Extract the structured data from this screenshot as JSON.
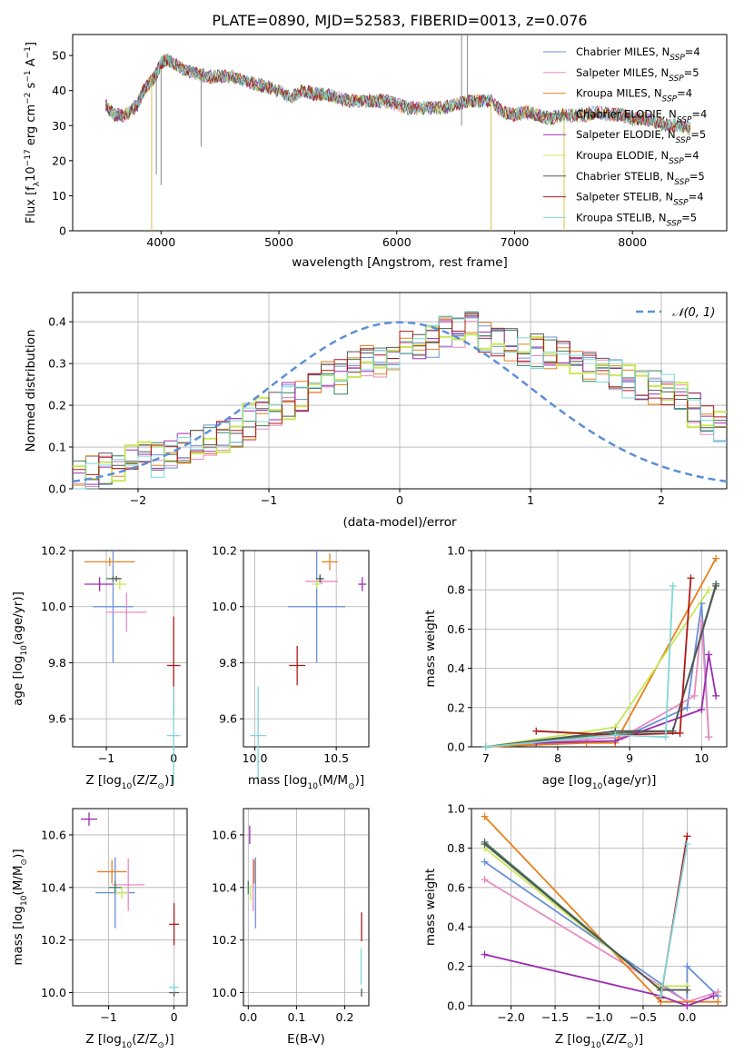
{
  "title": "PLATE=0890, MJD=52583, FIBERID=0013, z=0.076",
  "model_colors": [
    "#6a8fd8",
    "#e88bbf",
    "#e8801a",
    "#3f7f5a",
    "#9b2bb0",
    "#c8e85a",
    "#555555",
    "#b01818",
    "#7fd6d8"
  ],
  "chart_data": [
    {
      "id": "spectrum",
      "type": "line",
      "title": "PLATE=0890, MJD=52583, FIBERID=0013, z=0.076",
      "xlabel": "wavelength [Angstrom, rest frame]",
      "ylabel_main": "Flux [f",
      "ylabel_sub": "λ",
      "ylabel_mid": "10",
      "ylabel_sup1": "−17",
      "ylabel_end": " erg cm",
      "ylabel_sup2": "−2",
      "ylabel_end2": " s",
      "ylabel_sup3": "−1",
      "ylabel_end3": " A",
      "ylabel_sup4": "−1",
      "ylabel_close": "]",
      "xlim": [
        3250,
        8800
      ],
      "ylim": [
        0,
        56
      ],
      "xticks": [
        4000,
        5000,
        6000,
        7000,
        8000
      ],
      "yticks": [
        0,
        10,
        20,
        30,
        40,
        50
      ],
      "grid": false,
      "legend": "top-right",
      "x": [
        3530,
        3600,
        3700,
        3800,
        3850,
        3900,
        3950,
        4000,
        4050,
        4100,
        4200,
        4300,
        4400,
        4500,
        4600,
        4700,
        4800,
        4900,
        5000,
        5100,
        5200,
        5300,
        5400,
        5500,
        5600,
        5700,
        5800,
        5900,
        6000,
        6100,
        6200,
        6300,
        6400,
        6500,
        6600,
        6700,
        6800,
        6900,
        7000,
        7100,
        7200,
        7300,
        7400,
        7500,
        7600,
        7700,
        7800,
        7900,
        8000,
        8100,
        8200,
        8300,
        8400,
        8500
      ],
      "y": [
        36,
        33,
        33,
        36,
        40,
        42,
        44,
        48,
        49,
        48,
        46,
        45,
        44,
        44,
        44,
        43,
        42,
        41,
        40,
        38,
        40,
        39,
        39,
        38,
        37,
        37,
        37,
        37,
        36,
        35,
        35,
        35,
        35,
        36,
        37,
        37,
        37,
        34,
        33,
        34,
        33,
        32,
        33,
        33,
        33,
        34,
        33,
        33,
        32,
        32,
        31,
        30,
        30,
        29
      ],
      "series": [
        {
          "name": "Chabrier MILES, N",
          "sub": "SSP",
          "tail": "=4"
        },
        {
          "name": "Salpeter MILES, N",
          "sub": "SSP",
          "tail": "=5"
        },
        {
          "name": "Kroupa MILES, N",
          "sub": "SSP",
          "tail": "=4"
        },
        {
          "name": "Chabrier ELODIE, N",
          "sub": "SSP",
          "tail": "=4"
        },
        {
          "name": "Salpeter ELODIE, N",
          "sub": "SSP",
          "tail": "=5"
        },
        {
          "name": "Kroupa ELODIE, N",
          "sub": "SSP",
          "tail": "=4"
        },
        {
          "name": "Chabrier STELIB, N",
          "sub": "SSP",
          "tail": "=5"
        },
        {
          "name": "Salpeter STELIB, N",
          "sub": "SSP",
          "tail": "=4"
        },
        {
          "name": "Kroupa STELIB, N",
          "sub": "SSP",
          "tail": "=5"
        }
      ]
    },
    {
      "id": "residuals",
      "type": "bar",
      "xlabel": "(data-model)/error",
      "ylabel": "Normed distribution",
      "xlim": [
        -2.5,
        2.5
      ],
      "ylim": [
        0,
        0.47
      ],
      "xticks": [
        -2,
        -1,
        0,
        1,
        2
      ],
      "yticks": [
        0.0,
        0.1,
        0.2,
        0.3,
        0.4
      ],
      "grid": true,
      "legend": "top-right",
      "reference": {
        "name": "𝒩(0, 1)",
        "mean": 0,
        "sigma": 1
      },
      "bin_width": 0.1,
      "x_start": -2.5,
      "values": [
        0.03,
        0.04,
        0.05,
        0.06,
        0.06,
        0.07,
        0.07,
        0.08,
        0.09,
        0.1,
        0.11,
        0.13,
        0.14,
        0.16,
        0.18,
        0.19,
        0.21,
        0.22,
        0.24,
        0.26,
        0.27,
        0.29,
        0.3,
        0.31,
        0.33,
        0.34,
        0.35,
        0.36,
        0.37,
        0.38,
        0.38,
        0.37,
        0.36,
        0.35,
        0.34,
        0.33,
        0.32,
        0.31,
        0.3,
        0.29,
        0.28,
        0.27,
        0.26,
        0.25,
        0.24,
        0.23,
        0.21,
        0.19,
        0.17,
        0.15
      ]
    },
    {
      "id": "age-vs-Z",
      "type": "scatter",
      "xlabel": "Z [log",
      "xlabel_sub": "10",
      "xlabel_end": "(Z/Z",
      "xlabel_odot": "⊙",
      "xlabel_close": ")]",
      "ylabel": "age  [log",
      "ylabel_sub": "10",
      "ylabel_end": "(age/yr)]",
      "xlim": [
        -1.5,
        0.2
      ],
      "ylim": [
        9.5,
        10.2
      ],
      "xticks": [
        -1,
        0
      ],
      "yticks": [
        9.6,
        9.8,
        10.0,
        10.2
      ],
      "grid": true,
      "points": [
        {
          "x": -0.9,
          "y": 10.0,
          "xerr": 0.6,
          "yerr": 0.4
        },
        {
          "x": -0.7,
          "y": 9.98,
          "xerr": 0.6,
          "yerr": 0.14
        },
        {
          "x": -0.95,
          "y": 10.16,
          "xerr": 0.75,
          "yerr": 0.03
        },
        {
          "x": -0.9,
          "y": 10.1,
          "xerr": 0.2,
          "yerr": 0.02
        },
        {
          "x": -1.1,
          "y": 10.08,
          "xerr": 0.45,
          "yerr": 0.05
        },
        {
          "x": -0.8,
          "y": 10.08,
          "xerr": 0.2,
          "yerr": 0.04
        },
        {
          "x": -0.85,
          "y": 10.1,
          "xerr": 0.15,
          "yerr": 0.02
        },
        {
          "x": 0.0,
          "y": 9.79,
          "xerr": 0.2,
          "yerr": 0.35
        },
        {
          "x": 0.0,
          "y": 9.54,
          "xerr": 0.2,
          "yerr": 0.35
        }
      ]
    },
    {
      "id": "age-vs-mass",
      "type": "scatter",
      "xlabel": "mass [log",
      "xlabel_sub": "10",
      "xlabel_end": "(M/M",
      "xlabel_odot": "⊙",
      "xlabel_close": ")]",
      "xlim": [
        9.93,
        10.7
      ],
      "ylim": [
        9.5,
        10.2
      ],
      "xticks": [
        10.0,
        10.5
      ],
      "yticks": [
        9.6,
        9.8,
        10.0,
        10.2
      ],
      "grid": true,
      "points": [
        {
          "x": 10.38,
          "y": 10.0,
          "xerr": 0.35,
          "yerr": 0.4
        },
        {
          "x": 10.41,
          "y": 10.09,
          "xerr": 0.2,
          "yerr": 0.02
        },
        {
          "x": 10.46,
          "y": 10.16,
          "xerr": 0.1,
          "yerr": 0.06
        },
        {
          "x": 10.4,
          "y": 10.1,
          "xerr": 0.05,
          "yerr": 0.03
        },
        {
          "x": 10.66,
          "y": 10.08,
          "xerr": 0.05,
          "yerr": 0.05
        },
        {
          "x": 10.38,
          "y": 10.08,
          "xerr": 0.05,
          "yerr": 0.03
        },
        {
          "x": 10.4,
          "y": 10.1,
          "xerr": 0.02,
          "yerr": 0.02
        },
        {
          "x": 10.26,
          "y": 9.79,
          "xerr": 0.1,
          "yerr": 0.14
        },
        {
          "x": 10.02,
          "y": 9.54,
          "xerr": 0.1,
          "yerr": 0.35
        }
      ]
    },
    {
      "id": "weight-vs-age",
      "type": "line",
      "xlabel": "age  [log",
      "xlabel_sub": "10",
      "xlabel_end": "(age/yr)]",
      "ylabel": "mass weight",
      "xlim": [
        6.8,
        10.35
      ],
      "ylim": [
        0,
        1.0
      ],
      "xticks": [
        7,
        8,
        9,
        10
      ],
      "yticks": [
        0.0,
        0.2,
        0.4,
        0.6,
        0.8,
        1.0
      ],
      "grid": true,
      "series": [
        {
          "x": [
            7.0,
            8.8,
            9.8,
            10.0,
            10.1
          ],
          "y": [
            0.0,
            0.03,
            0.2,
            0.73,
            0.05
          ]
        },
        {
          "x": [
            7.0,
            8.9,
            9.9,
            10.0,
            10.1
          ],
          "y": [
            0.0,
            0.05,
            0.26,
            0.64,
            0.05
          ]
        },
        {
          "x": [
            7.0,
            8.4,
            8.8,
            10.2
          ],
          "y": [
            0.0,
            0.02,
            0.02,
            0.96
          ]
        },
        {
          "x": [
            7.0,
            8.8,
            9.6,
            10.2
          ],
          "y": [
            0.0,
            0.07,
            0.08,
            0.83
          ]
        },
        {
          "x": [
            7.7,
            8.8,
            10.0,
            10.1,
            10.2
          ],
          "y": [
            0.02,
            0.03,
            0.19,
            0.47,
            0.26
          ]
        },
        {
          "x": [
            7.0,
            8.8,
            10.1
          ],
          "y": [
            0.0,
            0.1,
            0.8
          ]
        },
        {
          "x": [
            7.0,
            8.8,
            9.6,
            10.2
          ],
          "y": [
            0.0,
            0.08,
            0.08,
            0.82
          ]
        },
        {
          "x": [
            7.7,
            8.8,
            9.7,
            9.85
          ],
          "y": [
            0.08,
            0.06,
            0.07,
            0.86
          ]
        },
        {
          "x": [
            7.0,
            8.8,
            9.5,
            9.6
          ],
          "y": [
            0.0,
            0.06,
            0.05,
            0.82
          ]
        }
      ]
    },
    {
      "id": "mass-vs-Z",
      "type": "scatter",
      "xlabel": "Z [log",
      "xlabel_sub": "10",
      "xlabel_end": "(Z/Z",
      "xlabel_odot": "⊙",
      "xlabel_close": ")]",
      "ylabel": "mass [log",
      "ylabel_sub": "10",
      "ylabel_end": "(M/M",
      "ylabel_odot": "⊙",
      "ylabel_close": ")]",
      "xlim": [
        -1.55,
        0.2
      ],
      "ylim": [
        9.95,
        10.7
      ],
      "xticks": [
        -1,
        0
      ],
      "yticks": [
        10.0,
        10.2,
        10.4,
        10.6
      ],
      "grid": true,
      "points": [
        {
          "x": -0.9,
          "y": 10.38,
          "xerr": 0.6,
          "yerr": 0.27
        },
        {
          "x": -0.7,
          "y": 10.41,
          "xerr": 0.5,
          "yerr": 0.2
        },
        {
          "x": -0.95,
          "y": 10.46,
          "xerr": 0.45,
          "yerr": 0.09
        },
        {
          "x": -0.9,
          "y": 10.4,
          "xerr": 0.2,
          "yerr": 0.05
        },
        {
          "x": -1.3,
          "y": 10.66,
          "xerr": 0.25,
          "yerr": 0.05
        },
        {
          "x": -0.8,
          "y": 10.38,
          "xerr": 0.2,
          "yerr": 0.05
        },
        {
          "x": 0.0,
          "y": 10.0,
          "xerr": 0.15,
          "yerr": 0.03
        },
        {
          "x": 0.0,
          "y": 10.26,
          "xerr": 0.15,
          "yerr": 0.16
        },
        {
          "x": 0.0,
          "y": 10.02,
          "xerr": 0.15,
          "yerr": 0.04
        }
      ]
    },
    {
      "id": "mass-vs-ebv",
      "type": "scatter",
      "xlabel": "E(B-V)",
      "xlim": [
        -0.01,
        0.25
      ],
      "ylim": [
        9.95,
        10.7
      ],
      "xticks": [
        0.0,
        0.1,
        0.2
      ],
      "yticks": [
        10.0,
        10.2,
        10.4,
        10.6
      ],
      "grid": true,
      "points": [
        {
          "x": 0.015,
          "y": 10.38,
          "xerr": 0,
          "yerr": 0.27
        },
        {
          "x": 0.01,
          "y": 10.41,
          "xerr": 0,
          "yerr": 0.2
        },
        {
          "x": 0.012,
          "y": 10.46,
          "xerr": 0,
          "yerr": 0.09
        },
        {
          "x": 0.0,
          "y": 10.4,
          "xerr": 0,
          "yerr": 0.05
        },
        {
          "x": 0.003,
          "y": 10.6,
          "xerr": 0,
          "yerr": 0.07
        },
        {
          "x": 0.005,
          "y": 10.38,
          "xerr": 0,
          "yerr": 0.06
        },
        {
          "x": 0.235,
          "y": 10.0,
          "xerr": 0,
          "yerr": 0.03
        },
        {
          "x": 0.235,
          "y": 10.25,
          "xerr": 0,
          "yerr": 0.11
        },
        {
          "x": 0.234,
          "y": 10.1,
          "xerr": 0,
          "yerr": 0.14
        }
      ]
    },
    {
      "id": "weight-vs-Z",
      "type": "line",
      "xlabel": "Z [log",
      "xlabel_sub": "10",
      "xlabel_end": "(Z/Z",
      "xlabel_odot": "⊙",
      "xlabel_close": ")]",
      "ylabel": "mass weight",
      "xlim": [
        -2.45,
        0.45
      ],
      "ylim": [
        0,
        1.0
      ],
      "xticks": [
        -2.0,
        -1.5,
        -1.0,
        -0.5,
        0.0
      ],
      "ytick_labels": [
        "−2.0",
        "−1.5",
        "−1.0",
        "−0.5",
        "0.0"
      ],
      "yticks": [
        0.0,
        0.2,
        0.4,
        0.6,
        0.8,
        1.0
      ],
      "grid": true,
      "series": [
        {
          "x": [
            -2.3,
            0.0,
            0.0,
            0.35
          ],
          "y": [
            0.73,
            0.02,
            0.2,
            0.05
          ]
        },
        {
          "x": [
            -2.3,
            0.0,
            0.35
          ],
          "y": [
            0.64,
            0.02,
            0.07
          ]
        },
        {
          "x": [
            -2.3,
            -0.3,
            0.35
          ],
          "y": [
            0.96,
            0.02,
            0.02
          ]
        },
        {
          "x": [
            -2.3,
            -0.3,
            0.0
          ],
          "y": [
            0.83,
            0.08,
            0.08
          ]
        },
        {
          "x": [
            -2.3,
            -0.3,
            0.0,
            0.3
          ],
          "y": [
            0.26,
            0.05,
            0.0,
            0.05
          ]
        },
        {
          "x": [
            -2.3,
            -0.35,
            0.0
          ],
          "y": [
            0.8,
            0.1,
            0.1
          ]
        },
        {
          "x": [
            -2.3,
            -0.3,
            0.0
          ],
          "y": [
            0.82,
            0.08,
            0.08
          ]
        },
        {
          "x": [
            -0.3,
            0.0
          ],
          "y": [
            0.04,
            0.86
          ]
        },
        {
          "x": [
            -0.3,
            0.0
          ],
          "y": [
            0.05,
            0.82
          ]
        }
      ]
    }
  ]
}
